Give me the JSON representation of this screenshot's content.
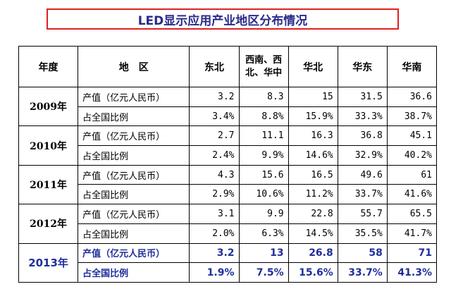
{
  "title": "LED显示应用产业地区分布情况",
  "table": {
    "headers": {
      "year": "年度",
      "region": "地　区",
      "regions": [
        "东北",
        "西南、西北、华中",
        "华北",
        "华东",
        "华南"
      ]
    },
    "rows": [
      {
        "year": "2009年",
        "value_label": "产值（亿元人民币）",
        "values": [
          "3.2",
          "8.3",
          "15",
          "31.5",
          "36.6"
        ],
        "share_label": "占全国比例",
        "shares": [
          "3.4%",
          "8.8%",
          "15.9%",
          "33.3%",
          "38.7%"
        ]
      },
      {
        "year": "2010年",
        "value_label": "产值（亿元人民币）",
        "values": [
          "2.7",
          "11.1",
          "16.3",
          "36.8",
          "45.1"
        ],
        "share_label": "占全国比例",
        "shares": [
          "2.4%",
          "9.9%",
          "14.6%",
          "32.9%",
          "40.2%"
        ]
      },
      {
        "year": "2011年",
        "value_label": "产值（亿元人民币）",
        "values": [
          "4.3",
          "15.6",
          "16.5",
          "49.6",
          "61"
        ],
        "share_label": "占全国比例",
        "shares": [
          "2.9%",
          "10.6%",
          "11.2%",
          "33.7%",
          "41.6%"
        ]
      },
      {
        "year": "2012年",
        "value_label": "产值（亿元人民币）",
        "values": [
          "3.1",
          "9.9",
          "22.8",
          "55.7",
          "65.5"
        ],
        "share_label": "占全国比例",
        "shares": [
          "2.0%",
          "6.3%",
          "14.5%",
          "35.5%",
          "41.7%"
        ]
      },
      {
        "year": "2013年",
        "value_label": "产值（亿元人民币）",
        "values": [
          "3.2",
          "13",
          "26.8",
          "58",
          "71"
        ],
        "share_label": "占全国比例",
        "shares": [
          "1.9%",
          "7.5%",
          "15.6%",
          "33.7%",
          "41.3%"
        ],
        "highlight": true
      }
    ]
  },
  "colors": {
    "title_border": "#e02020",
    "title_text": "#2a2a8a",
    "highlight_text": "#1f2f9a"
  }
}
